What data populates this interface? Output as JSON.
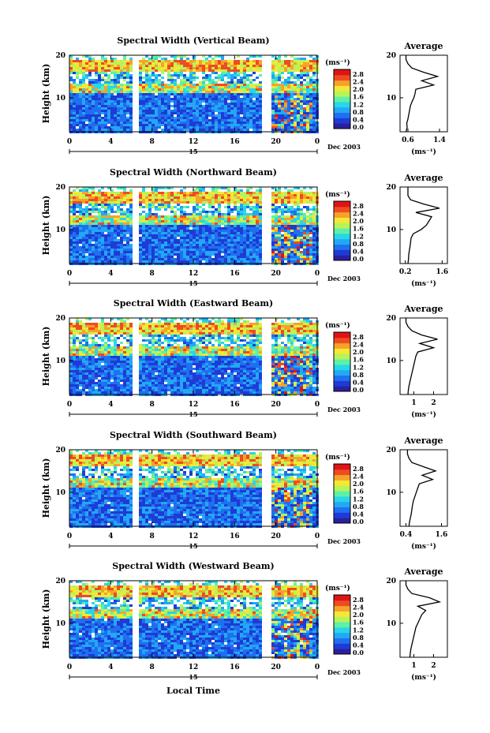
{
  "chart_data": {
    "type": "heatmap",
    "xlabel": "Local Time",
    "date_label": "Dec 2003",
    "day_label": "15",
    "x_ticks": [
      "0",
      "4",
      "8",
      "12",
      "16",
      "20",
      "0"
    ],
    "xlim": [
      0,
      24
    ],
    "colorbar": {
      "unit": "(ms⁻¹)",
      "range": [
        0,
        3.0
      ],
      "ticks": [
        "2.8",
        "2.4",
        "2.0",
        "1.6",
        "1.2",
        "0.8",
        "0.4",
        "0.0"
      ]
    },
    "colors": [
      "#2b1f9c",
      "#1e3bd6",
      "#1f6ff0",
      "#22a8f4",
      "#27d6e8",
      "#5ef0a8",
      "#b8f35a",
      "#f3e836",
      "#f6a22a",
      "#ef4b22",
      "#e01414"
    ],
    "panels": [
      {
        "title": "Spectral Width (Vertical Beam)",
        "ylabel": "Height (km)",
        "y_ticks": [
          "20",
          "10"
        ],
        "ylim": [
          2,
          20
        ],
        "gaps_hours": [
          [
            6.0,
            6.6
          ],
          [
            18.5,
            19.3
          ]
        ],
        "average": {
          "title": "Average",
          "xlabel": "(ms⁻¹)",
          "x_ticks": [
            "0.6",
            "1.4"
          ],
          "xlim": [
            0.4,
            1.6
          ],
          "y_ticks": [
            "20",
            "10"
          ],
          "profile": [
            [
              0.55,
              2
            ],
            [
              0.58,
              3
            ],
            [
              0.57,
              4
            ],
            [
              0.6,
              5
            ],
            [
              0.62,
              6
            ],
            [
              0.64,
              7
            ],
            [
              0.66,
              8
            ],
            [
              0.7,
              9
            ],
            [
              0.75,
              10
            ],
            [
              0.78,
              11
            ],
            [
              0.8,
              12
            ],
            [
              1.25,
              13
            ],
            [
              0.95,
              14
            ],
            [
              1.35,
              15
            ],
            [
              1.0,
              16
            ],
            [
              0.7,
              17
            ],
            [
              0.6,
              18
            ],
            [
              0.55,
              19
            ],
            [
              0.55,
              20
            ]
          ]
        }
      },
      {
        "title": "Spectral Width (Northward Beam)",
        "ylabel": "Height (km)",
        "y_ticks": [
          "20",
          "10"
        ],
        "ylim": [
          2,
          20
        ],
        "gaps_hours": [
          [
            6.0,
            6.6
          ],
          [
            18.5,
            19.3
          ]
        ],
        "average": {
          "title": "Average",
          "xlabel": "(ms⁻¹)",
          "x_ticks": [
            "0.2",
            "1.6"
          ],
          "xlim": [
            0.0,
            1.8
          ],
          "y_ticks": [
            "20",
            "10"
          ],
          "profile": [
            [
              0.3,
              2
            ],
            [
              0.32,
              3
            ],
            [
              0.33,
              4
            ],
            [
              0.35,
              5
            ],
            [
              0.38,
              6
            ],
            [
              0.4,
              7
            ],
            [
              0.42,
              8
            ],
            [
              0.5,
              9
            ],
            [
              0.8,
              10
            ],
            [
              1.0,
              11
            ],
            [
              1.1,
              12
            ],
            [
              1.2,
              13
            ],
            [
              0.6,
              14
            ],
            [
              1.5,
              15
            ],
            [
              0.9,
              16
            ],
            [
              0.4,
              17
            ],
            [
              0.3,
              18
            ],
            [
              0.3,
              19
            ],
            [
              0.3,
              20
            ]
          ]
        }
      },
      {
        "title": "Spectral Width (Eastward Beam)",
        "ylabel": "Height (km)",
        "y_ticks": [
          "20",
          "10"
        ],
        "ylim": [
          2,
          20
        ],
        "gaps_hours": [
          [
            6.0,
            6.6
          ],
          [
            18.5,
            19.3
          ]
        ],
        "average": {
          "title": "Average",
          "xlabel": "(ms⁻¹)",
          "x_ticks": [
            "1",
            "2"
          ],
          "xlim": [
            0.3,
            2.7
          ],
          "y_ticks": [
            "20",
            "10"
          ],
          "profile": [
            [
              0.7,
              2
            ],
            [
              0.72,
              3
            ],
            [
              0.75,
              4
            ],
            [
              0.8,
              5
            ],
            [
              0.85,
              6
            ],
            [
              0.9,
              7
            ],
            [
              0.95,
              8
            ],
            [
              1.0,
              9
            ],
            [
              1.05,
              10
            ],
            [
              1.1,
              11
            ],
            [
              1.2,
              12
            ],
            [
              2.0,
              13
            ],
            [
              1.3,
              14
            ],
            [
              2.2,
              15
            ],
            [
              1.4,
              16
            ],
            [
              0.9,
              17
            ],
            [
              0.7,
              18
            ],
            [
              0.6,
              19
            ],
            [
              0.6,
              20
            ]
          ]
        }
      },
      {
        "title": "Spectral Width (Southward Beam)",
        "ylabel": "Height (km)",
        "y_ticks": [
          "20",
          "10"
        ],
        "ylim": [
          2,
          20
        ],
        "gaps_hours": [
          [
            6.0,
            6.6
          ],
          [
            18.5,
            19.3
          ]
        ],
        "average": {
          "title": "Average",
          "xlabel": "(ms⁻¹)",
          "x_ticks": [
            "0.4",
            "1.6"
          ],
          "xlim": [
            0.2,
            1.8
          ],
          "y_ticks": [
            "20",
            "10"
          ],
          "profile": [
            [
              0.5,
              2
            ],
            [
              0.52,
              3
            ],
            [
              0.55,
              4
            ],
            [
              0.58,
              5
            ],
            [
              0.6,
              6
            ],
            [
              0.62,
              7
            ],
            [
              0.65,
              8
            ],
            [
              0.7,
              9
            ],
            [
              0.75,
              10
            ],
            [
              0.8,
              11
            ],
            [
              0.85,
              12
            ],
            [
              1.3,
              13
            ],
            [
              0.95,
              14
            ],
            [
              1.4,
              15
            ],
            [
              1.0,
              16
            ],
            [
              0.6,
              17
            ],
            [
              0.5,
              18
            ],
            [
              0.45,
              19
            ],
            [
              0.45,
              20
            ]
          ]
        }
      },
      {
        "title": "Spectral Width (Westward Beam)",
        "ylabel": "Height (km)",
        "y_ticks": [
          "20",
          "10"
        ],
        "ylim": [
          2,
          20
        ],
        "gaps_hours": [
          [
            6.0,
            6.6
          ],
          [
            18.5,
            19.3
          ]
        ],
        "average": {
          "title": "Average",
          "xlabel": "(ms⁻¹)",
          "x_ticks": [
            "1",
            "2"
          ],
          "xlim": [
            0.3,
            2.7
          ],
          "y_ticks": [
            "20",
            "10"
          ],
          "profile": [
            [
              0.8,
              2
            ],
            [
              0.82,
              3
            ],
            [
              0.85,
              4
            ],
            [
              0.9,
              5
            ],
            [
              0.95,
              6
            ],
            [
              1.0,
              7
            ],
            [
              1.05,
              8
            ],
            [
              1.1,
              9
            ],
            [
              1.2,
              10
            ],
            [
              1.3,
              11
            ],
            [
              1.4,
              12
            ],
            [
              1.6,
              13
            ],
            [
              1.2,
              14
            ],
            [
              2.3,
              15
            ],
            [
              1.8,
              16
            ],
            [
              0.9,
              17
            ],
            [
              0.7,
              18
            ],
            [
              0.6,
              19
            ],
            [
              0.6,
              20
            ]
          ]
        }
      }
    ]
  }
}
